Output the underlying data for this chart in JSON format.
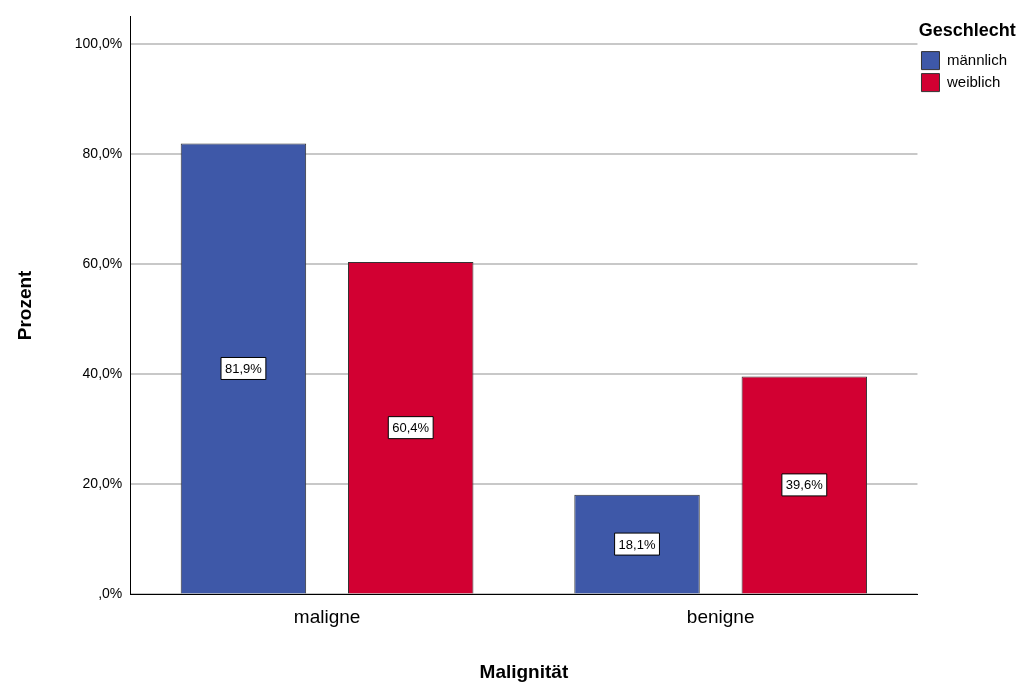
{
  "chart_data": {
    "type": "bar",
    "xlabel": "Malignität",
    "ylabel": "Prozent",
    "legend_title": "Geschlecht",
    "categories": [
      "maligne",
      "benigne"
    ],
    "series": [
      {
        "name": "männlich",
        "color": "#3e58a8",
        "values": [
          81.9,
          18.1
        ],
        "value_labels": [
          "81,9%",
          "18,1%"
        ]
      },
      {
        "name": "weiblich",
        "color": "#d20032",
        "values": [
          60.4,
          39.6
        ],
        "value_labels": [
          "60,4%",
          "39,6%"
        ]
      }
    ],
    "ylim": [
      0,
      105
    ],
    "yticks": [
      {
        "value": 0,
        "label": ",0%"
      },
      {
        "value": 20,
        "label": "20,0%"
      },
      {
        "value": 40,
        "label": "40,0%"
      },
      {
        "value": 60,
        "label": "60,0%"
      },
      {
        "value": 80,
        "label": "80,0%"
      },
      {
        "value": 100,
        "label": "100,0%"
      }
    ],
    "grid": "y",
    "legend": "top right"
  }
}
